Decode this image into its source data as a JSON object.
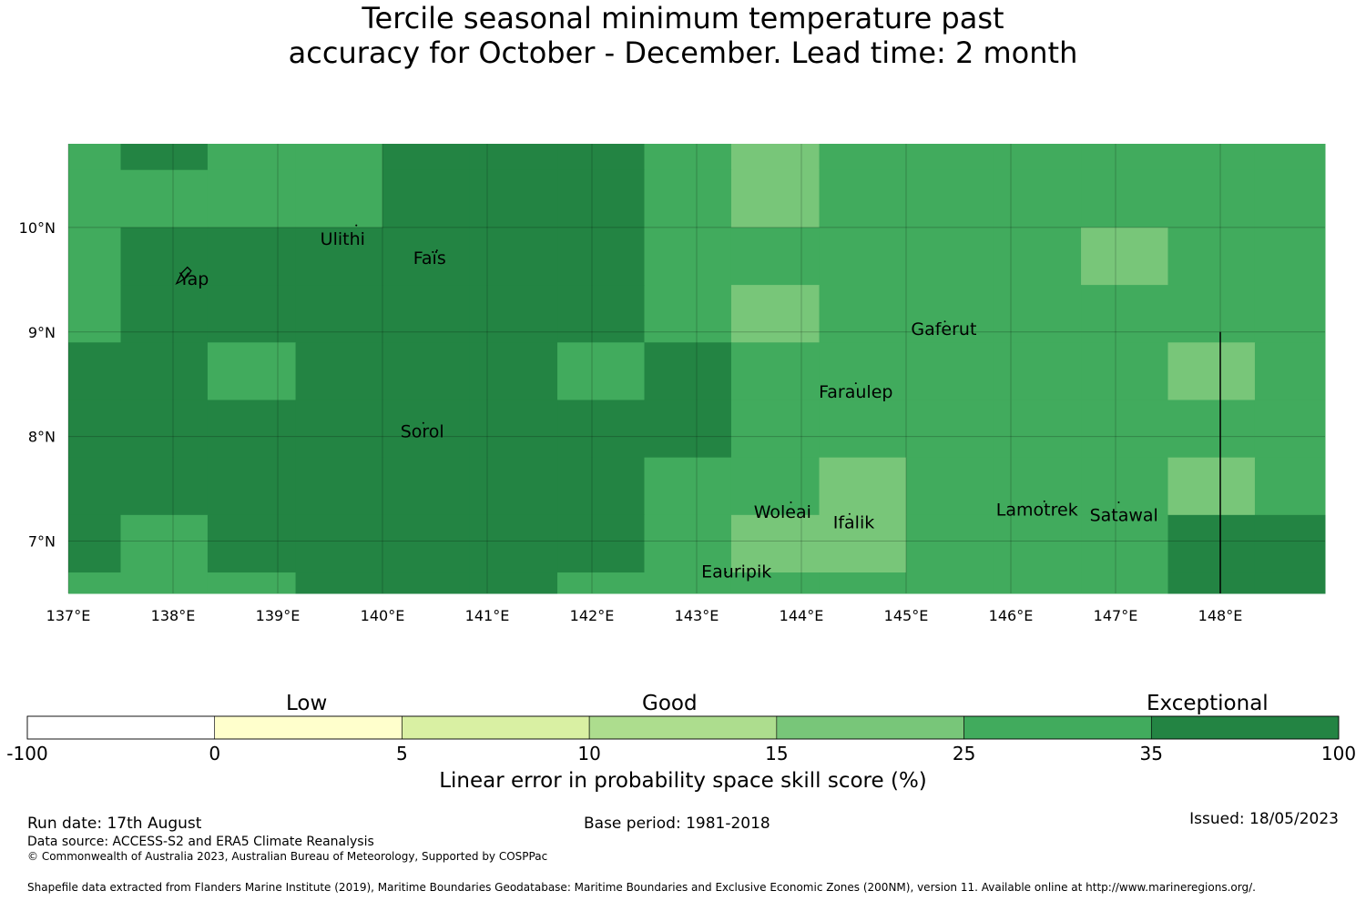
{
  "title": {
    "line1": "Tercile seasonal minimum temperature past",
    "line2": "accuracy for October - December. Lead time: 2 month"
  },
  "map": {
    "lon_range": [
      137,
      149
    ],
    "lat_range": [
      6.5,
      10.8
    ],
    "lon_ticks": [
      {
        "value": 137,
        "label": "137°E"
      },
      {
        "value": 138,
        "label": "138°E"
      },
      {
        "value": 139,
        "label": "139°E"
      },
      {
        "value": 140,
        "label": "140°E"
      },
      {
        "value": 141,
        "label": "141°E"
      },
      {
        "value": 142,
        "label": "142°E"
      },
      {
        "value": 143,
        "label": "143°E"
      },
      {
        "value": 144,
        "label": "144°E"
      },
      {
        "value": 145,
        "label": "145°E"
      },
      {
        "value": 146,
        "label": "146°E"
      },
      {
        "value": 147,
        "label": "147°E"
      },
      {
        "value": 148,
        "label": "148°E"
      }
    ],
    "lat_ticks": [
      {
        "value": 10,
        "label": "10°N"
      },
      {
        "value": 9,
        "label": "9°N"
      },
      {
        "value": 8,
        "label": "8°N"
      },
      {
        "value": 7,
        "label": "7°N"
      }
    ],
    "grid_lon_edges": [
      137,
      137.5,
      138.33,
      139.17,
      140,
      140.83,
      141.67,
      142.5,
      143.33,
      144.17,
      145,
      145.83,
      146.67,
      147.5,
      148.33,
      149
    ],
    "grid_lat_edges": [
      10.8,
      10.55,
      10.0,
      9.45,
      8.9,
      8.35,
      7.8,
      7.25,
      6.7,
      6.5
    ],
    "category_colors": [
      "#ffffff",
      "#ffffcc",
      "#d9f0a3",
      "#addd8e",
      "#78c679",
      "#41ab5d",
      "#238443"
    ],
    "cells": [
      [
        5,
        6,
        5,
        5,
        6,
        6,
        6,
        5,
        4,
        5,
        5,
        5,
        5,
        5,
        5
      ],
      [
        5,
        5,
        5,
        5,
        6,
        6,
        6,
        5,
        4,
        5,
        5,
        5,
        5,
        5,
        5
      ],
      [
        5,
        6,
        6,
        6,
        6,
        6,
        6,
        5,
        5,
        5,
        5,
        5,
        4,
        5,
        5
      ],
      [
        5,
        6,
        6,
        6,
        6,
        6,
        6,
        5,
        4,
        5,
        5,
        5,
        5,
        5,
        5
      ],
      [
        6,
        6,
        5,
        6,
        6,
        6,
        5,
        6,
        5,
        5,
        5,
        5,
        5,
        4,
        5
      ],
      [
        6,
        6,
        6,
        6,
        6,
        6,
        6,
        6,
        5,
        5,
        5,
        5,
        5,
        5,
        5
      ],
      [
        6,
        6,
        6,
        6,
        6,
        6,
        6,
        5,
        5,
        4,
        5,
        5,
        5,
        4,
        5
      ],
      [
        6,
        5,
        6,
        6,
        6,
        6,
        6,
        5,
        4,
        4,
        5,
        5,
        5,
        6,
        6
      ],
      [
        5,
        5,
        5,
        6,
        6,
        6,
        5,
        5,
        5,
        5,
        5,
        5,
        5,
        6,
        6
      ]
    ],
    "boundary_line": {
      "lon": 148.0,
      "lat_from": 9.0,
      "lat_to": 6.5
    },
    "places": [
      {
        "name": "Yap",
        "lon": 138.2,
        "lat": 9.5
      },
      {
        "name": "Ulithi",
        "lon": 139.62,
        "lat": 9.88
      },
      {
        "name": "Faïs",
        "lon": 140.45,
        "lat": 9.7
      },
      {
        "name": "Gaferut",
        "lon": 145.36,
        "lat": 9.02
      },
      {
        "name": "Faraulep",
        "lon": 144.52,
        "lat": 8.42
      },
      {
        "name": "Sorol",
        "lon": 140.38,
        "lat": 8.04
      },
      {
        "name": "Woleai",
        "lon": 143.82,
        "lat": 7.27
      },
      {
        "name": "Ifalik",
        "lon": 144.5,
        "lat": 7.17
      },
      {
        "name": "Lamotrek",
        "lon": 146.25,
        "lat": 7.29
      },
      {
        "name": "Satawal",
        "lon": 147.08,
        "lat": 7.24
      },
      {
        "name": "Eauripik",
        "lon": 143.38,
        "lat": 6.7
      }
    ]
  },
  "colorbar": {
    "categories": [
      {
        "label": "Low"
      },
      {
        "label": "Good"
      },
      {
        "label": "Exceptional"
      }
    ],
    "ticks": [
      "-100",
      "0",
      "5",
      "10",
      "15",
      "25",
      "35",
      "100"
    ],
    "xlabel": "Linear error in probability space skill score (%)"
  },
  "footer": {
    "run_date": "Run date: 17th August",
    "base_period": "Base period: 1981-2018",
    "issued": "Issued: 18/05/2023",
    "data_source": "Data source: ACCESS-S2 and ERA5 Climate Reanalysis",
    "copyright": "© Commonwealth of Australia 2023, Australian Bureau of Meteorology, Supported by COSPPac",
    "shapefile": "Shapefile data extracted from Flanders Marine Institute (2019), Maritime Boundaries Geodatabase: Maritime Boundaries and Exclusive Economic Zones (200NM), version 11. Available online at http://www.marineregions.org/."
  }
}
